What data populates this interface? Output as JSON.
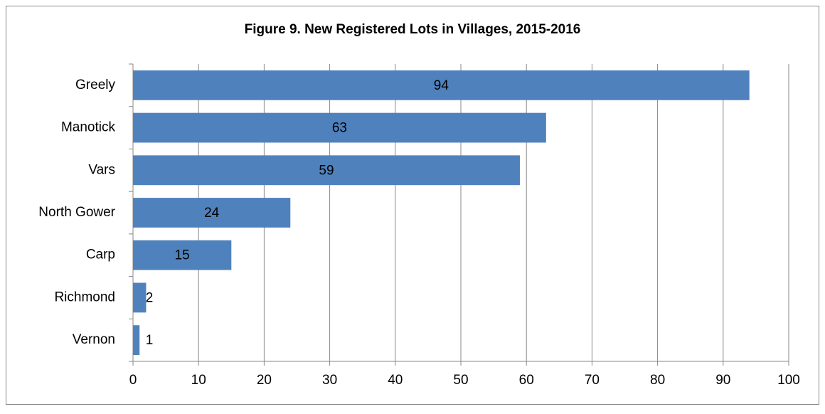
{
  "chart_data": {
    "type": "bar",
    "orientation": "horizontal",
    "title": "Figure 9. New Registered Lots in Villages, 2015-2016",
    "categories": [
      "Greely",
      "Manotick",
      "Vars",
      "North Gower",
      "Carp",
      "Richmond",
      "Vernon"
    ],
    "values": [
      94,
      63,
      59,
      24,
      15,
      2,
      1
    ],
    "color": "#4f81bd",
    "xlim": [
      0,
      100
    ],
    "xticks": [
      0,
      10,
      20,
      30,
      40,
      50,
      60,
      70,
      80,
      90,
      100
    ],
    "grid": true,
    "data_labels": true
  }
}
